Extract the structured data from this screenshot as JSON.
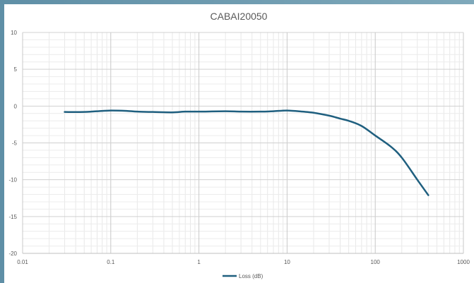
{
  "chart_data": {
    "type": "line",
    "title": "CABAI20050",
    "x_scale": "log",
    "xlim": [
      0.01,
      1000
    ],
    "ylim": [
      -20,
      10
    ],
    "x_ticks": [
      "0.01",
      "0.1",
      "1",
      "10",
      "100",
      "1000"
    ],
    "y_ticks": [
      "10",
      "5",
      "0",
      "-5",
      "-10",
      "-15",
      "-20"
    ],
    "grid": true,
    "legend_position": "bottom",
    "series": [
      {
        "name": "Loss (dB)",
        "color": "#1f5f7f",
        "x": [
          0.03,
          0.05,
          0.07,
          0.1,
          0.15,
          0.2,
          0.3,
          0.5,
          0.7,
          1,
          2,
          3,
          5,
          7,
          10,
          15,
          20,
          30,
          40,
          50,
          70,
          100,
          150,
          200,
          300,
          400
        ],
        "y": [
          -0.8,
          -0.8,
          -0.7,
          -0.6,
          -0.65,
          -0.75,
          -0.8,
          -0.85,
          -0.75,
          -0.75,
          -0.7,
          -0.75,
          -0.75,
          -0.7,
          -0.6,
          -0.75,
          -0.9,
          -1.3,
          -1.7,
          -2.0,
          -2.7,
          -4.0,
          -5.5,
          -7.0,
          -10.0,
          -12.1
        ]
      }
    ]
  }
}
